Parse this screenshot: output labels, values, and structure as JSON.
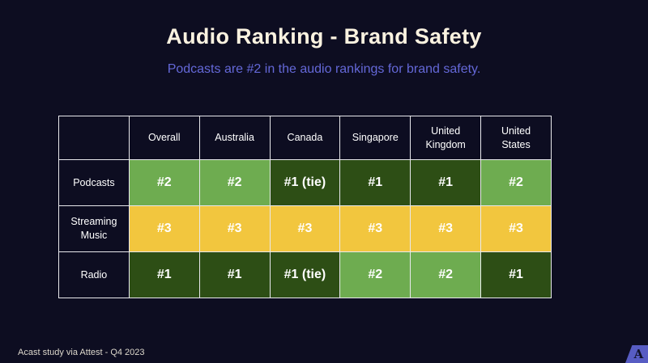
{
  "slide": {
    "title": "Audio Ranking - Brand Safety",
    "subtitle": "Podcasts are #2 in the audio rankings for brand safety.",
    "footer_source": "Acast study via Attest - Q4 2023",
    "logo_letter": "A"
  },
  "colors": {
    "background": "#0D0D21",
    "title_text": "#FAF2E0",
    "subtitle_text": "#6468D8",
    "cell_text": "#FFFFFF",
    "grid_line": "#E8E8EC",
    "light_green": "#6EAC50",
    "dark_green": "#2D4E15",
    "yellow": "#F2C63E",
    "footer_text": "#DDD8CC",
    "logo_blue": "#575CC3",
    "logo_letter": "#101129"
  },
  "chart_data": {
    "type": "table",
    "title": "Audio Ranking - Brand Safety",
    "columns": [
      "",
      "Overall",
      "Australia",
      "Canada",
      "Singapore",
      "United Kingdom",
      "United States"
    ],
    "rows": [
      {
        "label": "Podcasts",
        "cells": [
          {
            "text": "#2",
            "tone": "light_green"
          },
          {
            "text": "#2",
            "tone": "light_green"
          },
          {
            "text": "#1 (tie)",
            "tone": "dark_green"
          },
          {
            "text": "#1",
            "tone": "dark_green"
          },
          {
            "text": "#1",
            "tone": "dark_green"
          },
          {
            "text": "#2",
            "tone": "light_green"
          }
        ]
      },
      {
        "label": "Streaming Music",
        "cells": [
          {
            "text": "#3",
            "tone": "yellow"
          },
          {
            "text": "#3",
            "tone": "yellow"
          },
          {
            "text": "#3",
            "tone": "yellow"
          },
          {
            "text": "#3",
            "tone": "yellow"
          },
          {
            "text": "#3",
            "tone": "yellow"
          },
          {
            "text": "#3",
            "tone": "yellow"
          }
        ]
      },
      {
        "label": "Radio",
        "cells": [
          {
            "text": "#1",
            "tone": "dark_green"
          },
          {
            "text": "#1",
            "tone": "dark_green"
          },
          {
            "text": "#1 (tie)",
            "tone": "dark_green"
          },
          {
            "text": "#2",
            "tone": "light_green"
          },
          {
            "text": "#2",
            "tone": "light_green"
          },
          {
            "text": "#1",
            "tone": "dark_green"
          }
        ]
      }
    ],
    "legend": {
      "light_green": "rank 2",
      "dark_green": "rank 1",
      "yellow": "rank 3"
    }
  }
}
